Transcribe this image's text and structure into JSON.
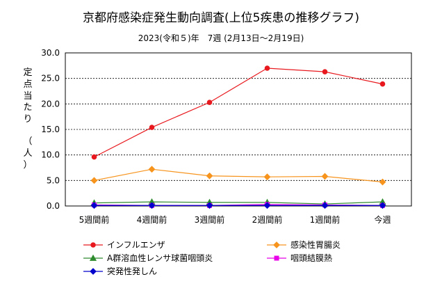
{
  "chart_data": {
    "type": "line",
    "title": "京都府感染症発生動向調査(上位5疾患の推移グラフ)",
    "subtitle": "2023(令和５)年　7週 (2月13日～2月19日)",
    "ylabel_lines": [
      "定",
      "点",
      "当",
      "た",
      "り",
      "（",
      "人",
      "）"
    ],
    "categories": [
      "5週間前",
      "4週間前",
      "3週間前",
      "2週間前",
      "1週間前",
      "今週"
    ],
    "ylim": [
      0,
      30
    ],
    "yticks": [
      "0.0",
      "5.0",
      "10.0",
      "15.0",
      "20.0",
      "25.0",
      "30.0"
    ],
    "grid": true,
    "legend_position": "bottom",
    "series": [
      {
        "name": "インフルエンザ",
        "color": "#e8191e",
        "marker": "circle",
        "values": [
          9.6,
          15.4,
          20.3,
          27.0,
          26.3,
          23.9
        ]
      },
      {
        "name": "感染性胃腸炎",
        "color": "#f7941d",
        "marker": "diamond",
        "values": [
          5.0,
          7.2,
          5.9,
          5.7,
          5.8,
          4.7
        ]
      },
      {
        "name": "A群溶血性レンサ球菌咽頭炎",
        "color": "#2e8b2e",
        "marker": "triangle",
        "values": [
          0.6,
          0.8,
          0.7,
          0.7,
          0.4,
          0.8
        ]
      },
      {
        "name": "咽頭結膜熱",
        "color": "#e800e8",
        "marker": "square",
        "values": [
          0.2,
          0.1,
          0.1,
          0.3,
          0.2,
          0.1
        ]
      },
      {
        "name": "突発性発しん",
        "color": "#0000cc",
        "marker": "diamond",
        "values": [
          0.1,
          0.1,
          0.1,
          0.1,
          0.1,
          0.1
        ]
      }
    ]
  }
}
